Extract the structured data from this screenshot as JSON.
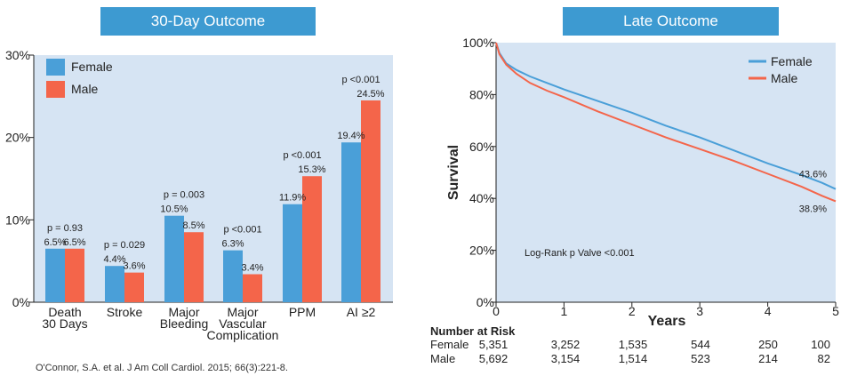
{
  "left_panel": {
    "banner": "30-Day Outcome",
    "citation": "O'Connor, S.A. et al. J Am Coll Cardiol. 2015; 66(3):221-8."
  },
  "right_panel": {
    "banner": "Late Outcome",
    "annotation": "Log-Rank p Valve <0.001",
    "risk_table": {
      "title": "Number at Risk",
      "rows": [
        {
          "label": "Female",
          "values": [
            "5,351",
            "3,252",
            "1,535",
            "544",
            "250",
            "100"
          ]
        },
        {
          "label": "Male",
          "values": [
            "5,692",
            "3,154",
            "1,514",
            "523",
            "214",
            "82"
          ]
        }
      ]
    }
  },
  "colors": {
    "female": "#4a9fd8",
    "male": "#f4654a",
    "plot_bg": "#d6e4f3",
    "banner": "#3d9ad1"
  },
  "chart_data": [
    {
      "type": "bar",
      "categories": [
        [
          "Death",
          "30 Days"
        ],
        [
          "Stroke"
        ],
        [
          "Major",
          "Bleeding"
        ],
        [
          "Major",
          "Vascular",
          "Complication"
        ],
        [
          "PPM"
        ],
        [
          "AI ≥2"
        ]
      ],
      "series": [
        {
          "name": "Female",
          "values": [
            6.5,
            4.4,
            10.5,
            6.3,
            11.9,
            19.4
          ],
          "labels": [
            "6.5%",
            "4.4%",
            "10.5%",
            "6.3%",
            "11.9%",
            "19.4%"
          ]
        },
        {
          "name": "Male",
          "values": [
            6.5,
            3.6,
            8.5,
            3.4,
            15.3,
            24.5
          ],
          "labels": [
            "6.5%",
            "3.6%",
            "8.5%",
            "3.4%",
            "15.3%",
            "24.5%"
          ]
        }
      ],
      "p_values": [
        "p = 0.93",
        "p = 0.029",
        "p = 0.003",
        "p <0.001",
        "p <0.001",
        "p <0.001"
      ],
      "yticks": [
        "0%",
        "10%",
        "20%",
        "30%"
      ],
      "ylim": [
        0,
        30
      ],
      "legend": "top-left",
      "grid": false
    },
    {
      "type": "line",
      "xlabel": "Years",
      "ylabel": "Survival",
      "xlim": [
        0,
        5
      ],
      "ylim": [
        0,
        100
      ],
      "xticks": [
        "0",
        "1",
        "2",
        "3",
        "4",
        "5"
      ],
      "yticks": [
        "0%",
        "20%",
        "40%",
        "60%",
        "80%",
        "100%"
      ],
      "legend": "top-right",
      "series": [
        {
          "name": "Female",
          "end_label": "43.6%",
          "x": [
            0,
            0.05,
            0.15,
            0.3,
            0.5,
            0.75,
            1,
            1.5,
            2,
            2.5,
            3,
            3.5,
            4,
            4.5,
            4.8,
            5
          ],
          "y": [
            100,
            96,
            92,
            89.5,
            87,
            84.5,
            82,
            77.5,
            73,
            68,
            63.5,
            58.5,
            53.5,
            49,
            46,
            43.6
          ]
        },
        {
          "name": "Male",
          "end_label": "38.9%",
          "x": [
            0,
            0.05,
            0.15,
            0.3,
            0.5,
            0.75,
            1,
            1.5,
            2,
            2.5,
            3,
            3.5,
            4,
            4.5,
            4.8,
            5
          ],
          "y": [
            100,
            95.5,
            91.5,
            88,
            84.5,
            81.5,
            79,
            73.5,
            68.5,
            63.5,
            59,
            54.5,
            49.5,
            44.5,
            41,
            38.9
          ]
        }
      ]
    }
  ]
}
